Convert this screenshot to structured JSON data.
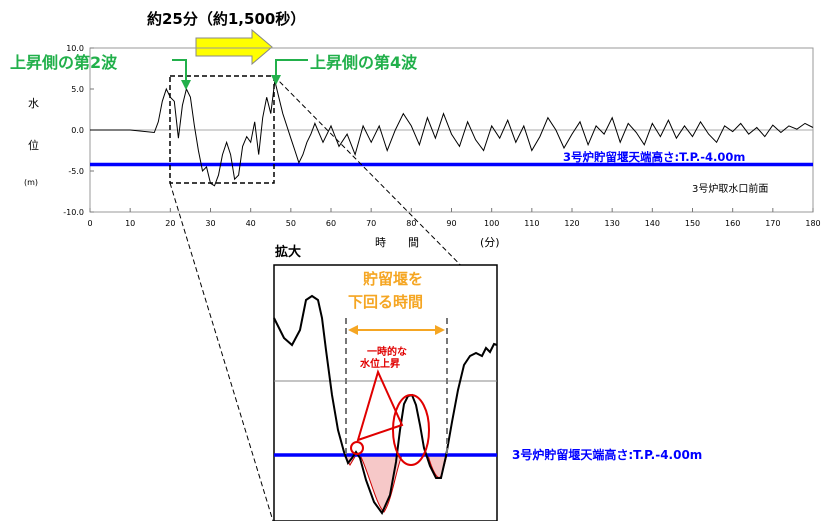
{
  "top_label": "約25分（約1,500秒）",
  "wave2_label": "上昇側の第2波",
  "wave4_label": "上昇側の第4波",
  "colors": {
    "wave": "#22b04b",
    "threshold": "#0000ff",
    "arrow_fill": "#ffff00",
    "orange": "#f5a623",
    "red": "#e00000"
  },
  "chart_data": [
    {
      "type": "line",
      "ylabel": "水位",
      "yunit": "(m)",
      "xlabel": "時　　間",
      "xunit": "(分)",
      "xlim": [
        0,
        180
      ],
      "ylim": [
        -10,
        10
      ],
      "xticks": [
        "0",
        "10",
        "20",
        "30",
        "40",
        "50",
        "60",
        "70",
        "80",
        "90",
        "100",
        "110",
        "120",
        "130",
        "140",
        "150",
        "160",
        "170",
        "180"
      ],
      "yticks": [
        "-10.0",
        "-5.0",
        "0.0",
        "5.0",
        "10.0"
      ],
      "threshold": -4.0,
      "threshold_label": "3号炉貯留堰天端高さ:T.P.-4.00m",
      "location_label": "3号炉取水口前面",
      "series": [
        {
          "x": [
            0,
            10,
            16,
            17,
            18,
            19,
            20,
            21,
            22,
            23,
            24,
            25,
            26,
            27,
            28,
            29,
            30,
            31,
            32,
            33,
            34,
            35,
            36,
            37,
            38,
            39,
            40,
            41,
            42,
            43,
            44,
            45,
            46,
            47,
            48,
            49,
            50,
            51,
            52,
            53,
            54,
            55,
            56,
            58,
            60,
            62,
            64,
            66,
            68,
            70,
            72,
            74,
            76,
            78,
            80,
            82,
            84,
            86,
            88,
            90,
            92,
            94,
            96,
            98,
            100,
            102,
            104,
            106,
            108,
            110,
            112,
            114,
            116,
            118,
            120,
            122,
            124,
            126,
            128,
            130,
            132,
            134,
            136,
            138,
            140,
            142,
            144,
            146,
            148,
            150,
            152,
            154,
            156,
            158,
            160,
            162,
            164,
            166,
            168,
            170,
            172,
            174,
            176,
            178,
            180
          ],
          "y": [
            0,
            0,
            -0.3,
            1.0,
            3.5,
            5.0,
            4.0,
            3.5,
            -1.0,
            3.0,
            5.0,
            4.0,
            0.5,
            -2.5,
            -5.0,
            -4.5,
            -6.5,
            -6.8,
            -5.5,
            -3.0,
            -1.5,
            -3.0,
            -6.0,
            -5.5,
            -2.0,
            -0.8,
            -1.5,
            1.0,
            -3.0,
            1.5,
            4.0,
            2.0,
            6.0,
            4.0,
            2.0,
            0.5,
            -1.0,
            -2.5,
            -4.0,
            -3.0,
            -1.5,
            -0.5,
            0.8,
            -1.5,
            0.5,
            -2.0,
            -0.5,
            -3.0,
            0.5,
            -1.5,
            0.5,
            -2.5,
            0.0,
            2.0,
            0.5,
            -1.8,
            1.5,
            -1.0,
            2.0,
            -0.5,
            -2.0,
            1.0,
            -1.2,
            -2.5,
            0.5,
            -1.0,
            1.2,
            -1.5,
            0.5,
            -2.5,
            -0.8,
            1.5,
            0.0,
            -2.2,
            -0.5,
            1.0,
            -1.8,
            0.5,
            -0.5,
            1.5,
            -1.5,
            0.8,
            -0.3,
            -1.8,
            0.8,
            -0.8,
            1.2,
            -1.0,
            0.5,
            -0.8,
            1.0,
            -0.5,
            -1.5,
            0.5,
            -0.2,
            0.8,
            -0.5,
            0.3,
            -0.8,
            0.6,
            -0.3,
            0.5,
            0.1,
            0.8,
            0.3
          ]
        }
      ]
    },
    {
      "type": "line",
      "title": "拡大",
      "threshold_label": "3号炉貯留堰天端高さ:T.P.-4.00m",
      "below_label": "貯留堰を下回る時間",
      "rise_label": "一時的な水位上昇"
    }
  ]
}
